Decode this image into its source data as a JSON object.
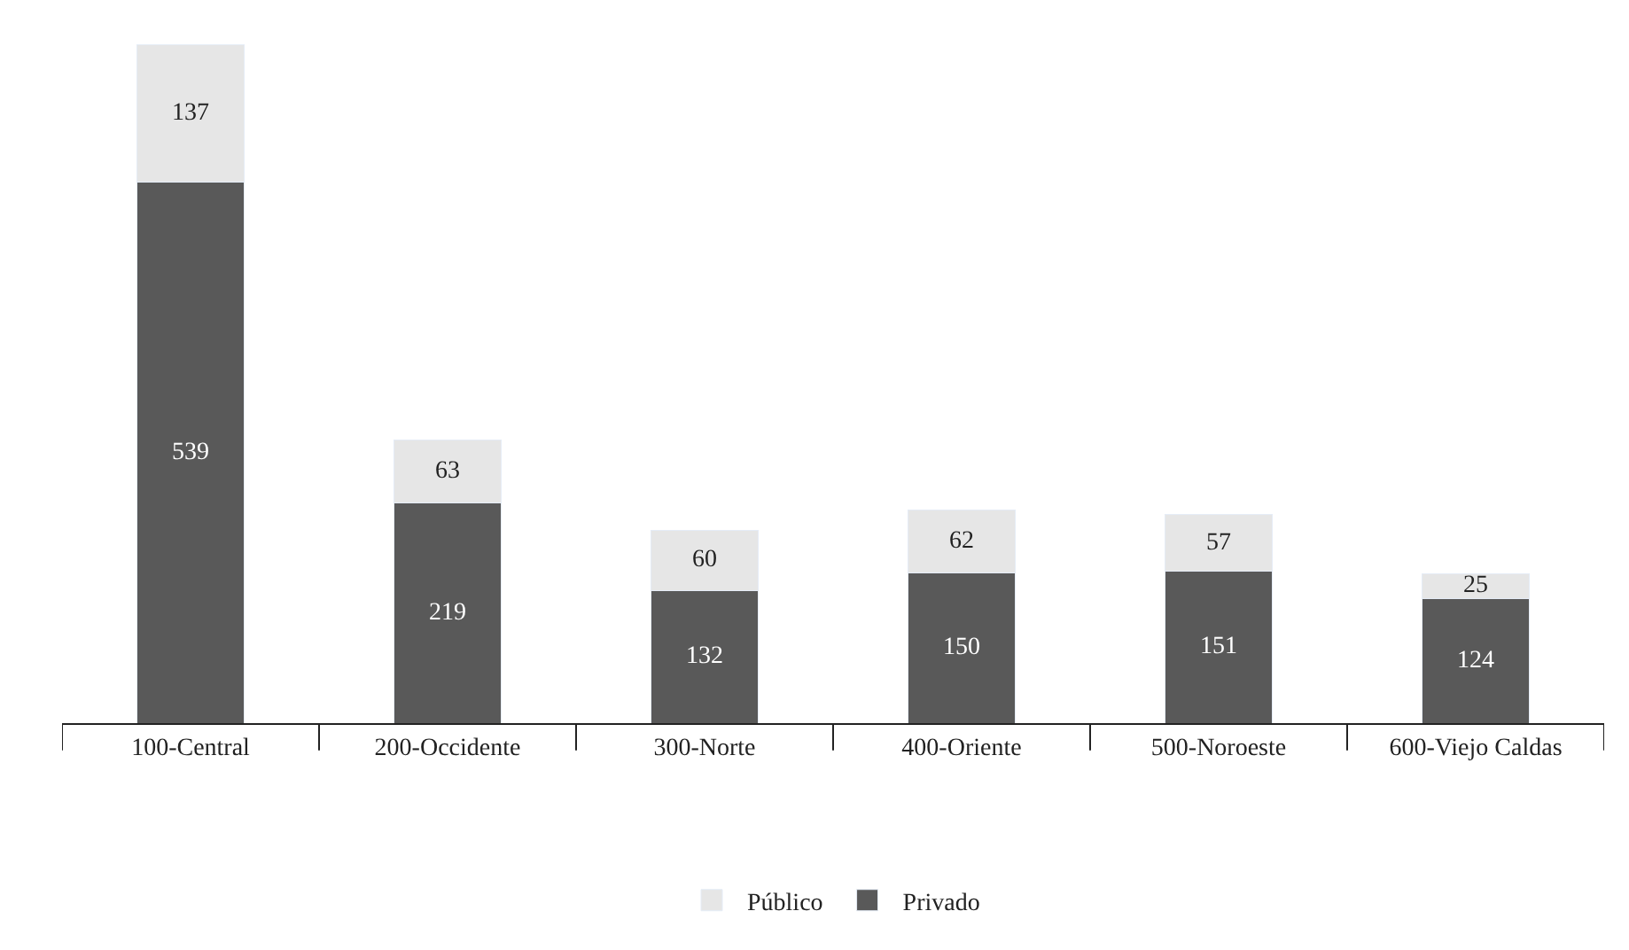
{
  "chart_data": {
    "type": "bar",
    "stacked": true,
    "data_labels": true,
    "legend": "bottom",
    "categories": [
      "100-Central",
      "200-Occidente",
      "300-Norte",
      "400-Oriente",
      "500-Noroeste",
      "600-Viejo Caldas"
    ],
    "series": [
      {
        "name": "Privado",
        "color": "#595959",
        "values": [
          539,
          219,
          132,
          150,
          151,
          124
        ]
      },
      {
        "name": "Público",
        "color": "#e6e6e6",
        "values": [
          137,
          63,
          60,
          62,
          57,
          25
        ]
      }
    ]
  }
}
